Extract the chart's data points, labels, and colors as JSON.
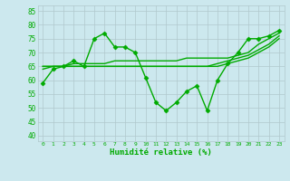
{
  "title": "",
  "xlabel": "Humidité relative (%)",
  "ylabel": "",
  "xlim": [
    -0.5,
    23.5
  ],
  "ylim": [
    38,
    87
  ],
  "yticks": [
    40,
    45,
    50,
    55,
    60,
    65,
    70,
    75,
    80,
    85
  ],
  "xticks": [
    0,
    1,
    2,
    3,
    4,
    5,
    6,
    7,
    8,
    9,
    10,
    11,
    12,
    13,
    14,
    15,
    16,
    17,
    18,
    19,
    20,
    21,
    22,
    23
  ],
  "background_color": "#cce8ee",
  "grid_color": "#b0c8cc",
  "line_color": "#00aa00",
  "series": [
    [
      59,
      64,
      65,
      67,
      65,
      75,
      77,
      72,
      72,
      70,
      61,
      52,
      49,
      52,
      56,
      58,
      49,
      60,
      66,
      70,
      75,
      75,
      76,
      78
    ],
    [
      64,
      65,
      65,
      66,
      66,
      66,
      66,
      67,
      67,
      67,
      67,
      67,
      67,
      67,
      68,
      68,
      68,
      68,
      68,
      69,
      70,
      73,
      75,
      77
    ],
    [
      65,
      65,
      65,
      65,
      65,
      65,
      65,
      65,
      65,
      65,
      65,
      65,
      65,
      65,
      65,
      65,
      65,
      66,
      67,
      68,
      69,
      71,
      73,
      76
    ],
    [
      65,
      65,
      65,
      65,
      65,
      65,
      65,
      65,
      65,
      65,
      65,
      65,
      65,
      65,
      65,
      65,
      65,
      65,
      66,
      67,
      68,
      70,
      72,
      75
    ]
  ],
  "marker": "D",
  "markersize": 2.5,
  "linewidth": 1.0
}
